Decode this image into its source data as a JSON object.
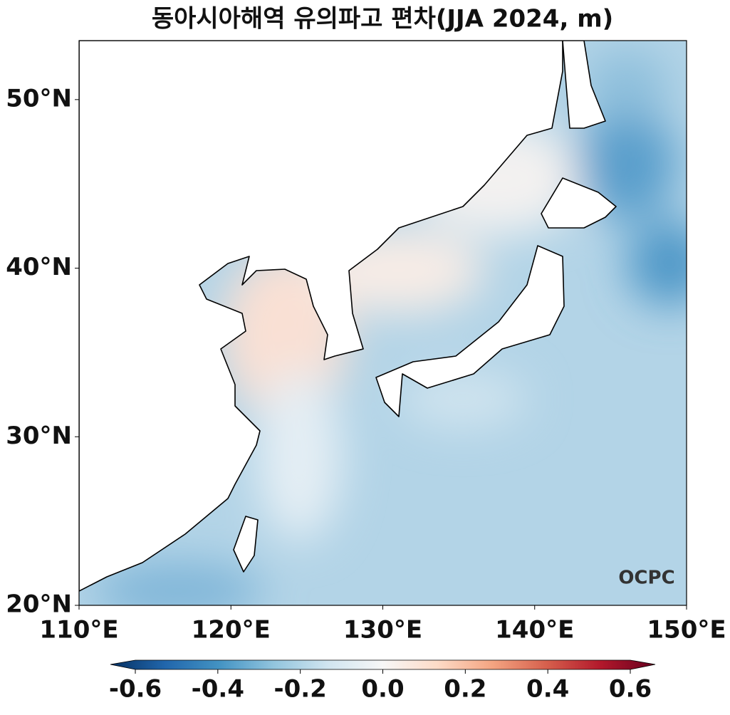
{
  "title": "동아시아해역 유의파고 편차(JJA 2024, m)",
  "map": {
    "xlim": [
      110,
      150
    ],
    "ylim": [
      20,
      53.5
    ],
    "xticks": [
      {
        "value": 110,
        "label": "110°E"
      },
      {
        "value": 120,
        "label": "120°E"
      },
      {
        "value": 130,
        "label": "130°E"
      },
      {
        "value": 140,
        "label": "140°E"
      },
      {
        "value": 150,
        "label": "150°E"
      }
    ],
    "yticks": [
      {
        "value": 20,
        "label": "20°N"
      },
      {
        "value": 30,
        "label": "30°N"
      },
      {
        "value": 40,
        "label": "40°N"
      },
      {
        "value": 50,
        "label": "50°N"
      }
    ]
  },
  "colorbar": {
    "lim": [
      -0.6,
      0.6
    ],
    "ticks": [
      -0.6,
      -0.4,
      -0.2,
      {
        "value": 0,
        "label": "0.0"
      },
      0.2,
      0.4,
      0.6
    ]
  },
  "logo": "OCPC"
}
